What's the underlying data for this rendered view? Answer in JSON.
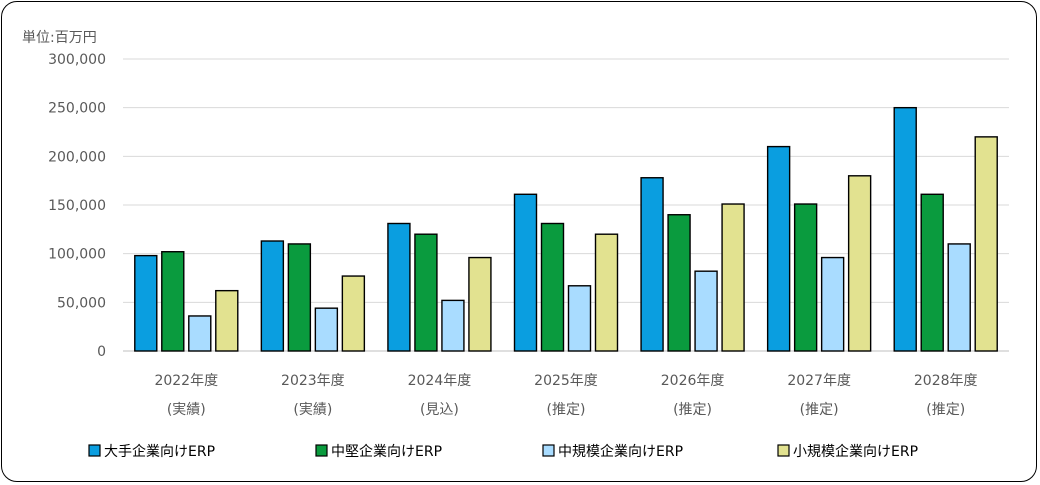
{
  "chart_data": {
    "type": "bar",
    "unit_label": "単位:百万円",
    "categories": [
      [
        "2022年度",
        "(実績)"
      ],
      [
        "2023年度",
        "(実績)"
      ],
      [
        "2024年度",
        "(見込)"
      ],
      [
        "2025年度",
        "(推定)"
      ],
      [
        "2026年度",
        "(推定)"
      ],
      [
        "2027年度",
        "(推定)"
      ],
      [
        "2028年度",
        "(推定)"
      ]
    ],
    "series": [
      {
        "name": "大手企業向けERP",
        "color": "#0a9ee0",
        "values": [
          98000,
          113000,
          131000,
          161000,
          178000,
          210000,
          250000
        ]
      },
      {
        "name": "中堅企業向けERP",
        "color": "#0a9b3e",
        "values": [
          102000,
          110000,
          120000,
          131000,
          140000,
          151000,
          161000
        ]
      },
      {
        "name": "中規模企業向けERP",
        "color": "#a9dcff",
        "values": [
          36000,
          44000,
          52000,
          67000,
          82000,
          96000,
          110000
        ]
      },
      {
        "name": "小規模企業向けERP",
        "color": "#e2e290",
        "values": [
          62000,
          77000,
          96000,
          120000,
          151000,
          180000,
          220000
        ]
      }
    ],
    "ylim": [
      0,
      300000
    ],
    "yticks": [
      "0",
      "50,000",
      "100,000",
      "150,000",
      "200,000",
      "250,000",
      "300,000"
    ],
    "ytick_values": [
      0,
      50000,
      100000,
      150000,
      200000,
      250000,
      300000
    ],
    "grid": true,
    "legend_position": "bottom"
  }
}
